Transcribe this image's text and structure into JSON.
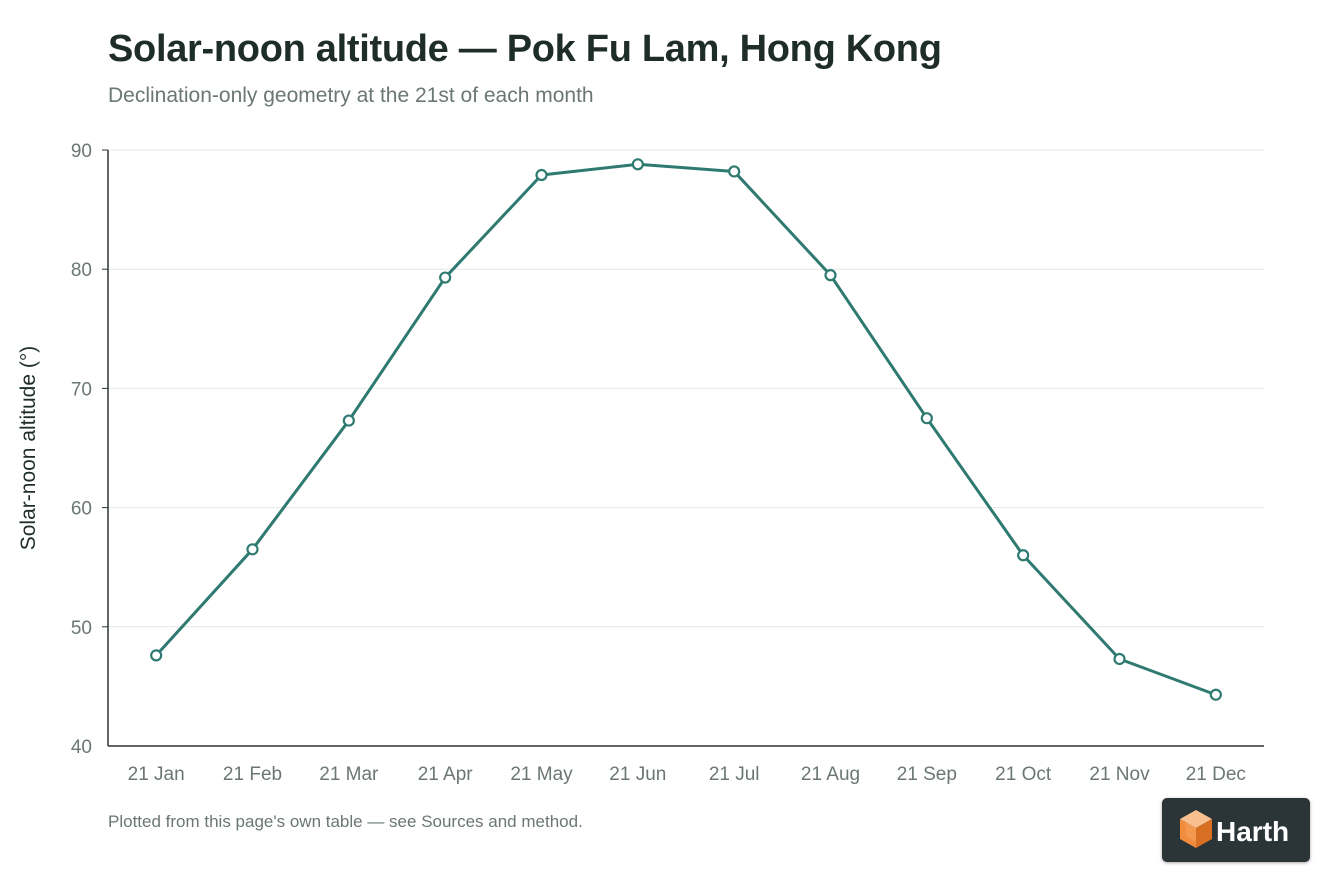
{
  "chart_data": {
    "type": "line",
    "title": "Solar-noon altitude — Pok Fu Lam, Hong Kong",
    "subtitle": "Declination-only geometry at the 21st of each month",
    "xlabel": "",
    "ylabel": "Solar-noon altitude (°)",
    "categories": [
      "21 Jan",
      "21 Feb",
      "21 Mar",
      "21 Apr",
      "21 May",
      "21 Jun",
      "21 Jul",
      "21 Aug",
      "21 Sep",
      "21 Oct",
      "21 Nov",
      "21 Dec"
    ],
    "series": [
      {
        "values": [
          47.6,
          56.5,
          67.3,
          79.3,
          87.9,
          88.8,
          88.2,
          79.5,
          67.5,
          56.0,
          47.3,
          44.3
        ],
        "color": "#2e7a70"
      }
    ],
    "ylim": [
      40,
      90
    ],
    "yticks": [
      40,
      50,
      60,
      70,
      80,
      90
    ],
    "grid": true,
    "legend": "none",
    "marker": "open-circle"
  },
  "footnote": "Plotted from this page's own table — see Sources and method.",
  "logo": {
    "text": "Harth",
    "icon": "orange-cube-icon",
    "accent": "#f5a15c"
  }
}
